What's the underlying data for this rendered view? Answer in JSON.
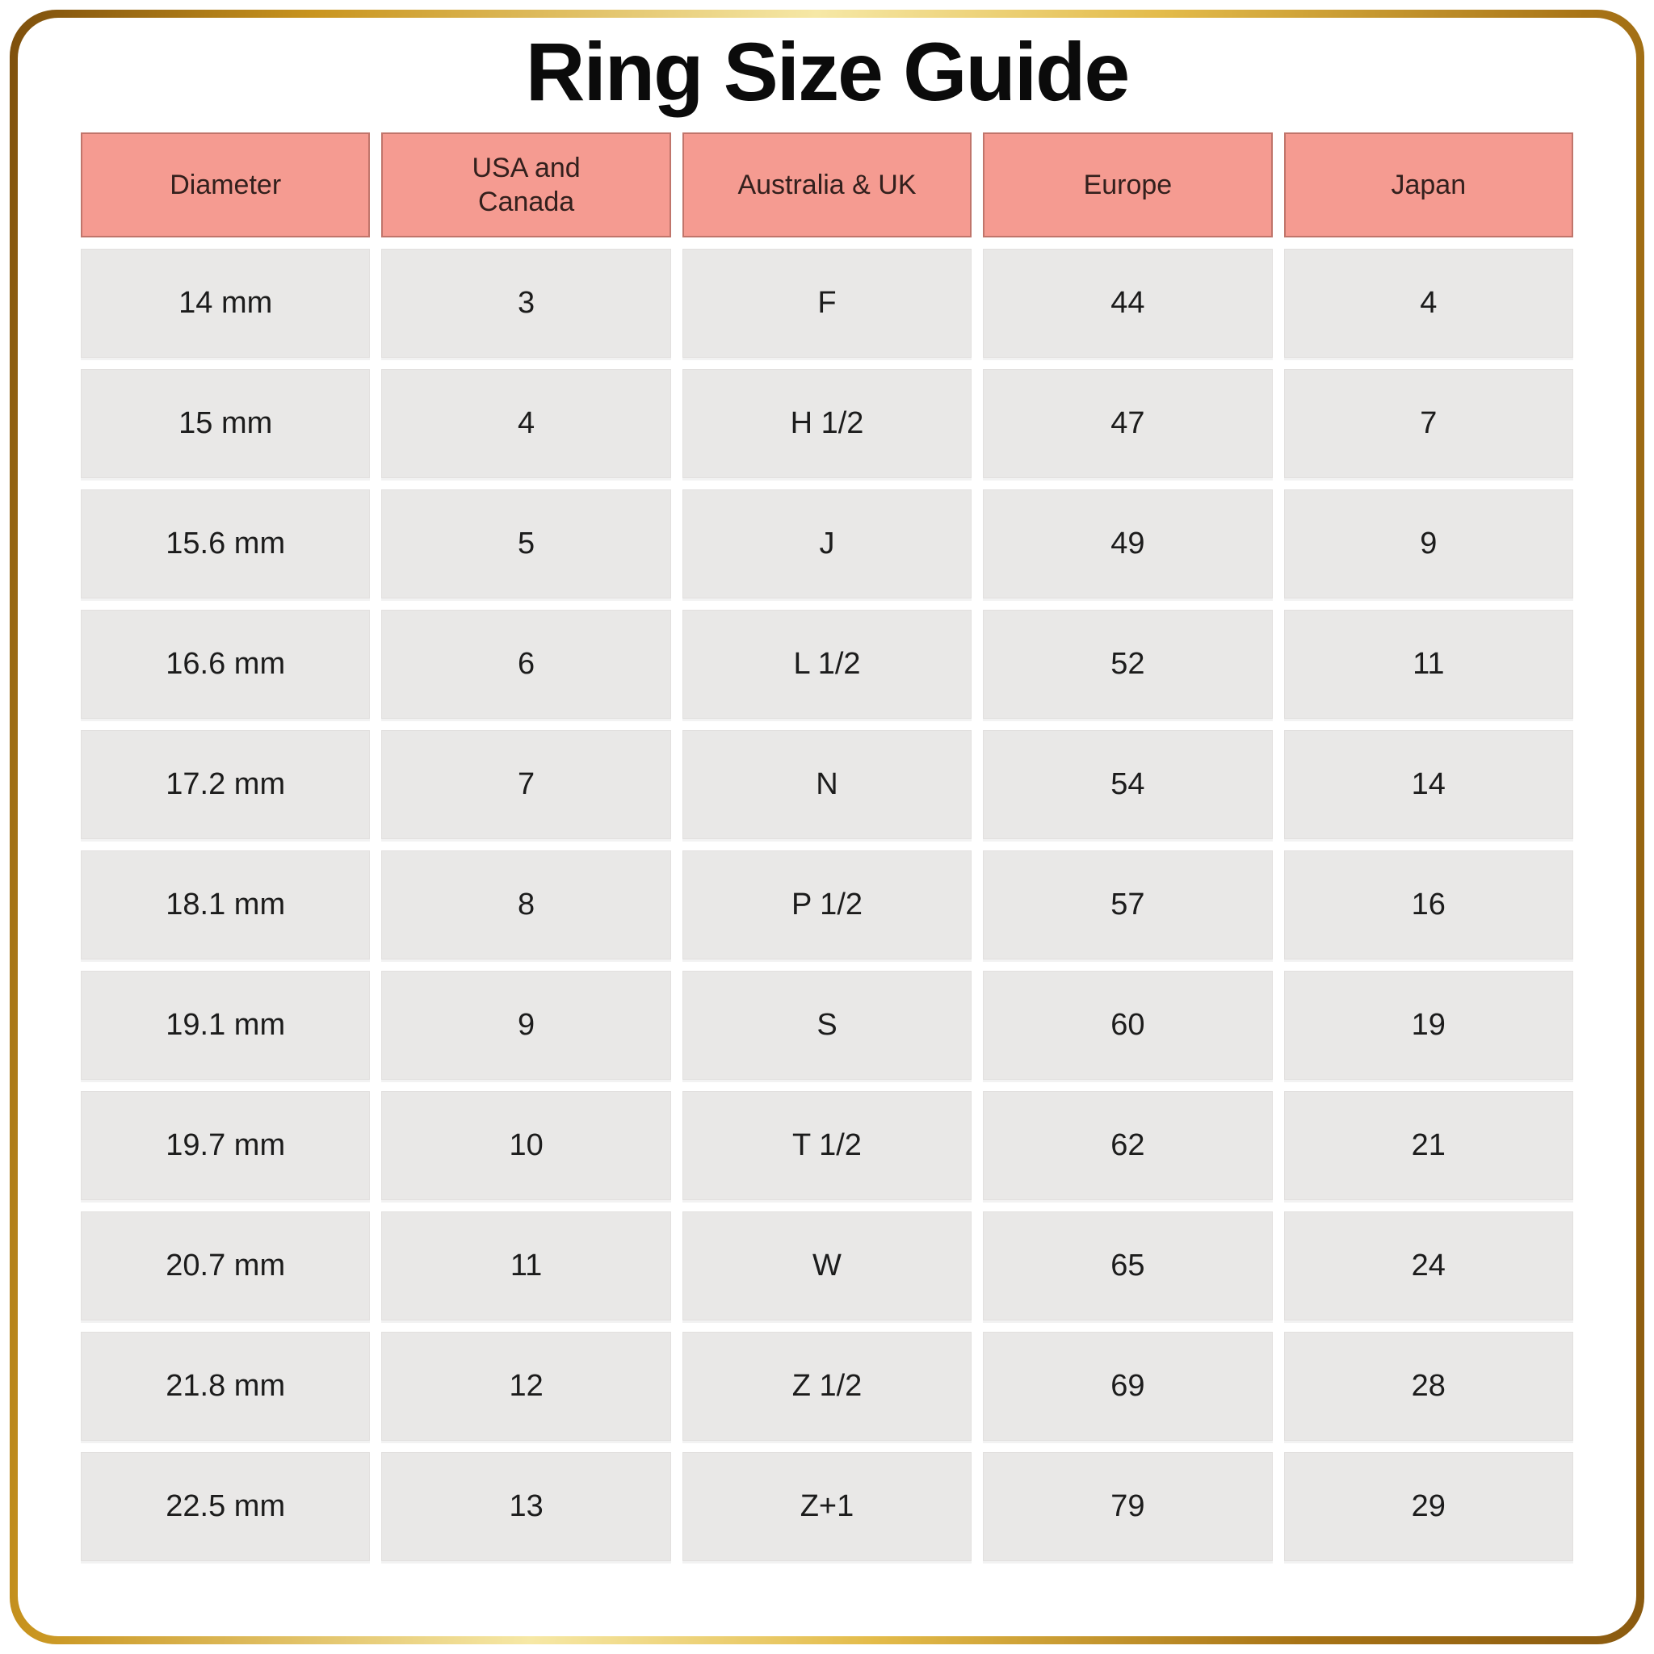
{
  "title": "Ring Size Guide",
  "colors": {
    "header_bg": "#F59B91",
    "header_border": "#C0756B",
    "header_text": "#33201D",
    "cell_bg": "#E9E8E7",
    "cell_text": "#1C1C1C",
    "gold_dark": "#8A5A10",
    "gold_light": "#F6E8A6"
  },
  "chart_data": {
    "type": "table",
    "title": "Ring Size Guide",
    "columns": [
      "Diameter",
      "USA and\nCanada",
      "Australia & UK",
      "Europe",
      "Japan"
    ],
    "rows": [
      [
        "14 mm",
        "3",
        "F",
        "44",
        "4"
      ],
      [
        "15 mm",
        "4",
        "H 1/2",
        "47",
        "7"
      ],
      [
        "15.6 mm",
        "5",
        "J",
        "49",
        "9"
      ],
      [
        "16.6 mm",
        "6",
        "L 1/2",
        "52",
        "11"
      ],
      [
        "17.2 mm",
        "7",
        "N",
        "54",
        "14"
      ],
      [
        "18.1 mm",
        "8",
        "P 1/2",
        "57",
        "16"
      ],
      [
        "19.1 mm",
        "9",
        "S",
        "60",
        "19"
      ],
      [
        "19.7 mm",
        "10",
        "T 1/2",
        "62",
        "21"
      ],
      [
        "20.7 mm",
        "11",
        "W",
        "65",
        "24"
      ],
      [
        "21.8 mm",
        "12",
        "Z 1/2",
        "69",
        "28"
      ],
      [
        "22.5 mm",
        "13",
        "Z+1",
        "79",
        "29"
      ]
    ]
  }
}
